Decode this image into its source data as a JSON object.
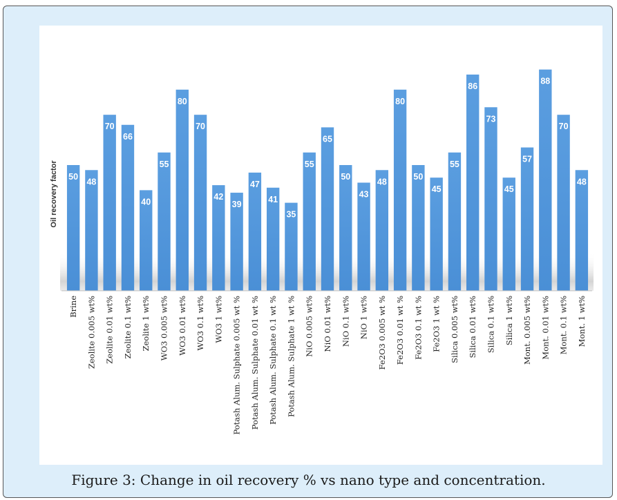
{
  "caption": "Figure 3: Change in oil recovery % vs nano type and concentration.",
  "colors": {
    "bar": "#4a8fd6",
    "bar_top": "#5b9ee0",
    "frame_bg": "#ddeefa",
    "value_label": "#ffffff"
  },
  "chart_data": {
    "type": "bar",
    "ylabel": "Oil recovery factor",
    "xlabel": "",
    "ylim": [
      0,
      100
    ],
    "grid": false,
    "categories": [
      "Brine",
      "Zeolite 0.005 wt%",
      "Zeolite 0.01 wt%",
      "Zeolite 0.1 wt%",
      "Zeolite 1 wt%",
      "WO3 0.005 wt%",
      "WO3 0.01 wt%",
      "WO3 0.1 wt%",
      "WO3 1 wt%",
      "Potash Alum. Sulphate 0.005 wt %",
      "Potash Alum. Sulphate 0.01 wt %",
      "Potash Alum. Sulphate 0.1 wt %",
      "Potash Alum. Sulphate 1 wt %",
      "NiO 0.005 wt%",
      "NiO 0.01 wt%",
      "NiO 0.1 wt%",
      "NiO 1 wt%",
      "Fe2O3 0.005 wt %",
      "Fe2O3 0.01 wt %",
      "Fe2O3 0.1 wt %",
      "Fe2O3 1 wt %",
      "Silica 0.005 wt%",
      "Silica 0.01 wt%",
      "Silica 0.1 wt%",
      "Silica 1 wt%",
      "Mont. 0.005 wt%",
      "Mont. 0.01 wt%",
      "Mont. 0.1 wt%",
      "Mont. 1 wt%"
    ],
    "values": [
      50,
      48,
      70,
      66,
      40,
      55,
      80,
      70,
      42,
      39,
      47,
      41,
      35,
      55,
      65,
      50,
      43,
      48,
      80,
      50,
      45,
      55,
      86,
      73,
      45,
      57,
      88,
      70,
      48
    ]
  }
}
